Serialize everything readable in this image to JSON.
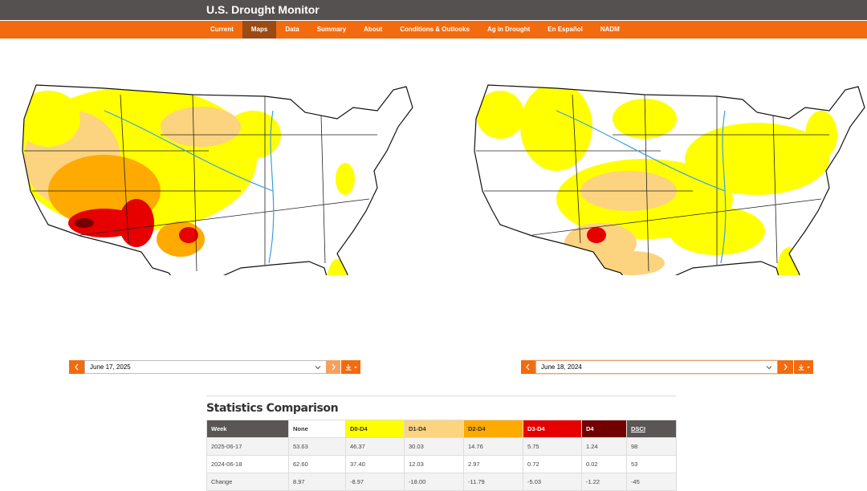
{
  "header": {
    "title": "U.S. Drought Monitor",
    "nav": [
      "Current",
      "Maps",
      "Data",
      "Summary",
      "About",
      "Conditions & Outlooks",
      "Ag in Drought",
      "En Español",
      "NADM"
    ]
  },
  "maps": {
    "left_date": "June 17, 2025",
    "right_date": "June 18, 2024"
  },
  "statistics": {
    "title": "Statistics Comparison",
    "columns": [
      "Week",
      "None",
      "D0-D4",
      "D1-D4",
      "D2-D4",
      "D3-D4",
      "D4",
      "DSCI"
    ],
    "rows": [
      [
        "2025-06-17",
        "53.63",
        "46.37",
        "30.03",
        "14.76",
        "5.75",
        "1.24",
        "98"
      ],
      [
        "2024-06-18",
        "62.60",
        "37.40",
        "12.03",
        "2.97",
        "0.72",
        "0.02",
        "53"
      ],
      [
        "Change",
        "8.97",
        "-8.97",
        "-18.00",
        "-11.79",
        "-5.03",
        "-1.22",
        "-45"
      ]
    ]
  }
}
